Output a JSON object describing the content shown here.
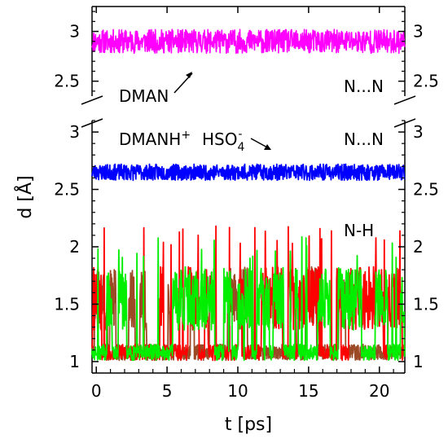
{
  "chart_data": {
    "type": "line",
    "xlabel": "t [ps]",
    "ylabel": "d [Å]",
    "xlim": [
      -0.3,
      21.8
    ],
    "x_ticks": [
      0,
      5,
      10,
      15,
      20
    ],
    "x_tick_labels": [
      "0",
      "5",
      "10",
      "15",
      "20"
    ],
    "panels": [
      {
        "id": "top",
        "ylim": [
          2.35,
          3.25
        ],
        "y_ticks": [
          2.5,
          3
        ],
        "y_tick_labels": [
          "2.5",
          "3"
        ],
        "annotations": [
          {
            "text": "DMAN",
            "role": "series-callout",
            "arrow": true
          },
          {
            "text": "N...N",
            "role": "distance-label"
          }
        ],
        "series": [
          {
            "color": "#ff00ff",
            "mean": 2.9,
            "amplitude": 0.12,
            "x_range": [
              -0.3,
              21.8
            ]
          }
        ]
      },
      {
        "id": "bottom",
        "ylim": [
          0.9,
          3.1
        ],
        "y_ticks": [
          1,
          1.5,
          2,
          2.5,
          3
        ],
        "y_tick_labels": [
          "1",
          "1.5",
          "2",
          "2.5",
          "3"
        ],
        "annotations": [
          {
            "text": "DMANH",
            "sup": "+",
            "role": "series-callout"
          },
          {
            "text": "HSO",
            "sub": "4",
            "sup": "-",
            "role": "series-callout",
            "arrow": true
          },
          {
            "text": "N...N",
            "role": "distance-label"
          },
          {
            "text": "N-H",
            "role": "distance-label"
          }
        ],
        "series": [
          {
            "color": "#0000ff",
            "mean": 2.65,
            "amplitude": 0.07,
            "x_range": [
              -0.3,
              21.8
            ]
          },
          {
            "color": "#ff0000",
            "mean": 1.35,
            "amplitude": 0.3,
            "max": 2.2,
            "x_range": [
              -0.3,
              21.8
            ]
          },
          {
            "color": "#8b2a00",
            "mean": 1.3,
            "amplitude": 0.25,
            "x_range": [
              -0.3,
              21.8
            ]
          },
          {
            "color": "#00ee00",
            "mean": 1.3,
            "amplitude": 0.3,
            "max": 2.1,
            "x_range": [
              -0.3,
              21.8
            ]
          }
        ]
      }
    ],
    "grid": false,
    "legend": "none"
  }
}
